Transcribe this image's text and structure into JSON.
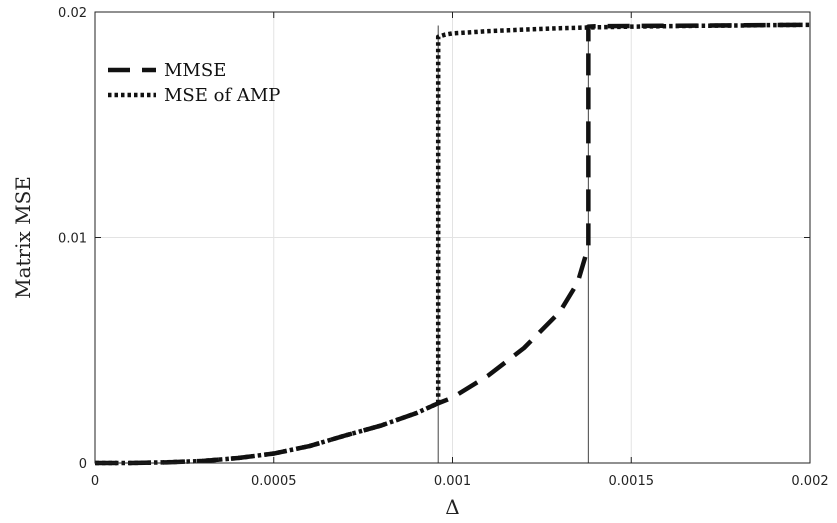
{
  "chart_data": {
    "type": "line",
    "title": "",
    "xlabel": "Δ",
    "ylabel": "Matrix MSE",
    "xlim": [
      0,
      0.002
    ],
    "ylim": [
      0,
      0.02
    ],
    "xticks": [
      0,
      0.0005,
      0.001,
      0.0015,
      0.002
    ],
    "xtick_labels": [
      "0",
      "0.0005",
      "0.001",
      "0.0015",
      "0.002"
    ],
    "yticks": [
      0,
      0.01,
      0.02
    ],
    "ytick_labels": [
      "0",
      "0.01",
      "0.02"
    ],
    "grid": true,
    "legend_position": "top-left",
    "vertical_markers": [
      0.00096,
      0.00138
    ],
    "series": [
      {
        "name": "MMSE",
        "style": "dashed",
        "x": [
          0,
          0.0001,
          0.0002,
          0.0003,
          0.0004,
          0.0005,
          0.0006,
          0.0007,
          0.0008,
          0.0009,
          0.00096,
          0.001,
          0.0011,
          0.0012,
          0.0013,
          0.00135,
          0.00138,
          0.00138,
          0.0014,
          0.0015,
          0.0016,
          0.0017,
          0.0018,
          0.0019,
          0.002
        ],
        "y": [
          0,
          0,
          3e-05,
          9e-05,
          0.00022,
          0.00042,
          0.00075,
          0.00122,
          0.00166,
          0.00222,
          0.00265,
          0.0029,
          0.00388,
          0.0051,
          0.0067,
          0.008,
          0.0096,
          0.01935,
          0.01937,
          0.01938,
          0.01939,
          0.0194,
          0.01941,
          0.01942,
          0.01943
        ]
      },
      {
        "name": "MSE of AMP",
        "style": "dotted",
        "x": [
          0,
          0.0001,
          0.0002,
          0.0003,
          0.0004,
          0.0005,
          0.0006,
          0.0007,
          0.0008,
          0.0009,
          0.00096,
          0.00096,
          0.00098,
          0.001,
          0.0011,
          0.0012,
          0.0013,
          0.0014,
          0.0015,
          0.0016,
          0.0017,
          0.0018,
          0.0019,
          0.002
        ],
        "y": [
          0,
          0,
          3e-05,
          9e-05,
          0.00022,
          0.00042,
          0.00075,
          0.00122,
          0.00166,
          0.00222,
          0.00265,
          0.0189,
          0.019,
          0.01905,
          0.01915,
          0.01922,
          0.01928,
          0.01932,
          0.01935,
          0.01937,
          0.01939,
          0.0194,
          0.01942,
          0.01943
        ]
      }
    ]
  }
}
